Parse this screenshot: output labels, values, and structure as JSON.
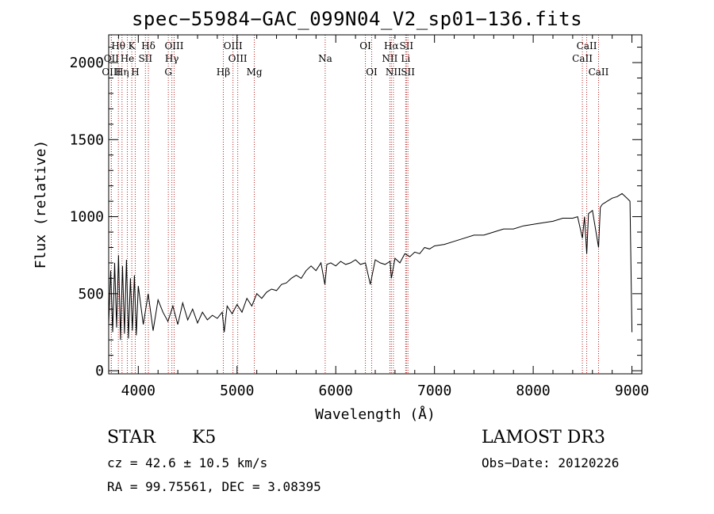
{
  "chart_data": {
    "type": "line",
    "title": "spec−55984−GAC_099N04_V2_sp01−136.fits",
    "xlabel": "Wavelength (Å)",
    "ylabel": "Flux (relative)",
    "xlim": [
      3700,
      9100
    ],
    "ylim": [
      -20,
      2180
    ],
    "x_ticks": [
      4000,
      5000,
      6000,
      7000,
      8000,
      9000
    ],
    "x_tick_labels": [
      "4000",
      "5000",
      "6000",
      "7000",
      "8000",
      "9000"
    ],
    "y_ticks": [
      0,
      500,
      1000,
      1500,
      2000
    ],
    "y_tick_labels": [
      "0",
      "500",
      "1000",
      "1500",
      "2000"
    ],
    "series": [
      {
        "name": "flux",
        "x": [
          3700,
          3720,
          3740,
          3760,
          3780,
          3800,
          3820,
          3840,
          3860,
          3880,
          3900,
          3920,
          3940,
          3960,
          3980,
          4000,
          4050,
          4100,
          4150,
          4200,
          4250,
          4300,
          4350,
          4400,
          4450,
          4500,
          4550,
          4600,
          4650,
          4700,
          4750,
          4800,
          4850,
          4870,
          4900,
          4950,
          5000,
          5050,
          5100,
          5150,
          5200,
          5250,
          5300,
          5350,
          5400,
          5450,
          5500,
          5550,
          5600,
          5650,
          5700,
          5750,
          5800,
          5850,
          5890,
          5910,
          5950,
          6000,
          6050,
          6100,
          6150,
          6200,
          6250,
          6300,
          6350,
          6400,
          6450,
          6500,
          6550,
          6563,
          6600,
          6650,
          6700,
          6750,
          6800,
          6850,
          6900,
          6950,
          7000,
          7100,
          7200,
          7300,
          7400,
          7500,
          7600,
          7700,
          7800,
          7900,
          8000,
          8100,
          8200,
          8300,
          8400,
          8450,
          8498,
          8520,
          8542,
          8560,
          8600,
          8662,
          8680,
          8700,
          8750,
          8800,
          8850,
          8900,
          8950,
          8980,
          9000
        ],
        "y": [
          300,
          650,
          250,
          700,
          280,
          750,
          200,
          680,
          240,
          720,
          210,
          600,
          260,
          620,
          230,
          550,
          300,
          500,
          260,
          460,
          380,
          320,
          420,
          300,
          440,
          330,
          400,
          310,
          380,
          330,
          360,
          340,
          380,
          250,
          420,
          370,
          430,
          380,
          470,
          420,
          500,
          470,
          510,
          530,
          520,
          560,
          570,
          600,
          620,
          600,
          650,
          680,
          650,
          700,
          560,
          690,
          700,
          680,
          710,
          690,
          700,
          720,
          690,
          700,
          560,
          720,
          700,
          690,
          710,
          600,
          730,
          700,
          760,
          740,
          770,
          760,
          800,
          790,
          810,
          820,
          840,
          860,
          880,
          880,
          900,
          920,
          920,
          940,
          950,
          960,
          970,
          990,
          990,
          1000,
          860,
          1000,
          760,
          1020,
          1040,
          800,
          1060,
          1080,
          1100,
          1120,
          1130,
          1150,
          1120,
          1100,
          250
        ]
      }
    ],
    "lines": [
      {
        "name": "Hθ",
        "wavelength": 3798,
        "label_row": 0
      },
      {
        "name": "OII",
        "wavelength": 3727,
        "label_row": 1
      },
      {
        "name": "OIII",
        "wavelength": 3727,
        "label_row": 2
      },
      {
        "name": "Hη",
        "wavelength": 3835,
        "label_row": 2
      },
      {
        "name": "K",
        "wavelength": 3934,
        "label_row": 0
      },
      {
        "name": "He",
        "wavelength": 3889,
        "label_row": 1
      },
      {
        "name": "H",
        "wavelength": 3969,
        "label_row": 2
      },
      {
        "name": "SII",
        "wavelength": 4072,
        "label_row": 1
      },
      {
        "name": "Hδ",
        "wavelength": 4102,
        "label_row": 0
      },
      {
        "name": "OIII",
        "wavelength": 4363,
        "label_row": 0
      },
      {
        "name": "Hγ",
        "wavelength": 4340,
        "label_row": 1
      },
      {
        "name": "G",
        "wavelength": 4304,
        "label_row": 2
      },
      {
        "name": "OIII",
        "wavelength": 4959,
        "label_row": 0
      },
      {
        "name": "OIII",
        "wavelength": 5007,
        "label_row": 1
      },
      {
        "name": "Hβ",
        "wavelength": 4861,
        "label_row": 2
      },
      {
        "name": "Mg",
        "wavelength": 5175,
        "label_row": 2
      },
      {
        "name": "Na",
        "wavelength": 5893,
        "label_row": 1
      },
      {
        "name": "OI",
        "wavelength": 6300,
        "label_row": 0
      },
      {
        "name": "OI",
        "wavelength": 6364,
        "label_row": 2
      },
      {
        "name": "Hα",
        "wavelength": 6563,
        "label_row": 0
      },
      {
        "name": "SII",
        "wavelength": 6716,
        "label_row": 0
      },
      {
        "name": "NII",
        "wavelength": 6548,
        "label_row": 1
      },
      {
        "name": "Li",
        "wavelength": 6708,
        "label_row": 1
      },
      {
        "name": "NII",
        "wavelength": 6584,
        "label_row": 2
      },
      {
        "name": "SII",
        "wavelength": 6731,
        "label_row": 2
      },
      {
        "name": "CaII",
        "wavelength": 8542,
        "label_row": 0
      },
      {
        "name": "CaII",
        "wavelength": 8498,
        "label_row": 1
      },
      {
        "name": "CaII",
        "wavelength": 8662,
        "label_row": 2
      }
    ],
    "colors": {
      "line_marker": "#b22222",
      "spectrum": "#000000"
    }
  },
  "info": {
    "object_class": "STAR",
    "subclass": "K5",
    "survey": "LAMOST DR3",
    "redshift_text": "cz = 42.6 ± 10.5 km/s",
    "obs_date": "Obs−Date: 20120226",
    "coords": "RA =  99.75561, DEC =   3.08395"
  }
}
